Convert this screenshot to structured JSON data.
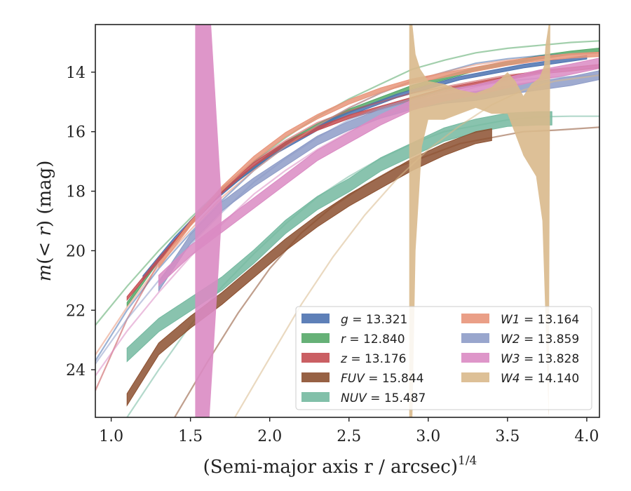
{
  "chart_data": {
    "type": "area",
    "xlabel": "(Semi-major axis r / arcsec)",
    "xlabel_sup": "1/4",
    "ylabel": "m(< r) (mag)",
    "xlim": [
      0.9,
      4.08
    ],
    "ylim": [
      25.6,
      12.4
    ],
    "y_inverted": true,
    "x_ticks": [
      1.0,
      1.5,
      2.0,
      2.5,
      3.0,
      3.5,
      4.0
    ],
    "x_tick_labels": [
      "1.0",
      "1.5",
      "2.0",
      "2.5",
      "3.0",
      "3.5",
      "4.0"
    ],
    "y_ticks": [
      14,
      16,
      18,
      20,
      22,
      24
    ],
    "y_tick_labels": [
      "14",
      "16",
      "18",
      "20",
      "22",
      "24"
    ],
    "grid": false,
    "legend_position": "lower-right",
    "legend": [
      {
        "name": "g",
        "value": "13.321",
        "label": "g = 13.321",
        "color": "#4c72b0"
      },
      {
        "name": "r",
        "value": "12.840",
        "label": "r = 12.840",
        "color": "#55a868"
      },
      {
        "name": "z",
        "value": "13.176",
        "label": "z = 13.176",
        "color": "#c44e52"
      },
      {
        "name": "FUV",
        "value": "15.844",
        "label": "FUV = 15.844",
        "color": "#8c5030"
      },
      {
        "name": "NUV",
        "value": "15.487",
        "label": "NUV = 15.487",
        "color": "#74b9a0"
      },
      {
        "name": "W1",
        "value": "13.164",
        "label": "W1 = 13.164",
        "color": "#e8957a"
      },
      {
        "name": "W2",
        "value": "13.859",
        "label": "W2 = 13.859",
        "color": "#8e9cc8"
      },
      {
        "name": "W3",
        "value": "13.828",
        "label": "W3 = 13.828",
        "color": "#da8bc3"
      },
      {
        "name": "W4",
        "value": "14.140",
        "label": "W4 = 14.140",
        "color": "#d9b98c"
      }
    ],
    "series": [
      {
        "key": "r",
        "color": "#55a868",
        "band": {
          "x": [
            1.1,
            1.3,
            1.5,
            1.7,
            1.9,
            2.1,
            2.3,
            2.5,
            2.7,
            2.9,
            3.1,
            3.3,
            3.5,
            3.7,
            3.9,
            4.08
          ],
          "y": [
            21.8,
            20.3,
            19.1,
            18.0,
            17.2,
            16.4,
            15.8,
            15.3,
            14.9,
            14.5,
            14.2,
            13.9,
            13.7,
            13.5,
            13.35,
            13.25
          ],
          "width": 0.12
        },
        "model": {
          "x": [
            0.9,
            1.1,
            1.3,
            1.5,
            1.7,
            1.9,
            2.1,
            2.3,
            2.5,
            2.7,
            2.9,
            3.1,
            3.3,
            3.5,
            3.7,
            3.9,
            4.08
          ],
          "y": [
            22.5,
            21.2,
            20.0,
            18.9,
            17.9,
            17.0,
            16.2,
            15.5,
            14.9,
            14.4,
            13.9,
            13.6,
            13.35,
            13.2,
            13.1,
            13.0,
            12.95
          ]
        }
      },
      {
        "key": "g",
        "color": "#4c72b0",
        "band": {
          "x": [
            1.2,
            1.4,
            1.6,
            1.8,
            2.0,
            2.2,
            2.4,
            2.6,
            2.8,
            3.0,
            3.2,
            3.4,
            3.6,
            3.8,
            4.0
          ],
          "y": [
            20.9,
            19.6,
            18.5,
            17.6,
            16.8,
            16.2,
            15.6,
            15.2,
            14.8,
            14.5,
            14.2,
            14.0,
            13.8,
            13.65,
            13.5
          ],
          "width": 0.12
        },
        "model": {
          "x": [
            0.9,
            1.1,
            1.3,
            1.5,
            1.7,
            1.9,
            2.1,
            2.3,
            2.5,
            2.7,
            2.9,
            3.1,
            3.3,
            3.5,
            3.7,
            3.9,
            4.08
          ],
          "y": [
            23.7,
            22.0,
            20.6,
            19.4,
            18.3,
            17.3,
            16.5,
            15.8,
            15.2,
            14.7,
            14.3,
            14.0,
            13.7,
            13.55,
            13.45,
            13.4,
            13.35
          ]
        }
      },
      {
        "key": "z",
        "color": "#c44e52",
        "band": {
          "x": [
            1.1,
            1.3,
            1.5,
            1.7,
            1.9,
            2.1,
            2.3,
            2.5,
            2.7,
            2.9,
            3.1,
            3.3,
            3.5,
            3.7,
            3.9,
            4.08
          ],
          "y": [
            21.6,
            20.3,
            19.1,
            18.0,
            17.1,
            16.4,
            15.9,
            15.5,
            15.2,
            14.9,
            14.6,
            14.4,
            14.2,
            14.0,
            13.9,
            13.8
          ],
          "width": 0.12
        },
        "model": {
          "x": [
            0.9,
            1.1,
            1.3,
            1.5,
            1.7,
            1.9,
            2.1,
            2.3,
            2.5,
            2.7,
            2.9,
            3.1,
            3.3,
            3.5,
            3.7,
            3.9,
            4.08
          ],
          "y": [
            24.7,
            22.3,
            20.4,
            19.0,
            17.9,
            17.0,
            16.3,
            15.7,
            15.3,
            15.0,
            14.7,
            14.5,
            14.3,
            14.1,
            14.0,
            13.9,
            13.8
          ]
        }
      },
      {
        "key": "W1",
        "color": "#e8957a",
        "band": {
          "x": [
            1.3,
            1.5,
            1.7,
            1.9,
            2.1,
            2.3,
            2.5,
            2.7,
            2.9,
            3.1,
            3.3,
            3.5,
            3.7,
            3.9,
            4.08
          ],
          "y": [
            20.5,
            19.1,
            17.9,
            16.9,
            16.1,
            15.5,
            15.0,
            14.6,
            14.3,
            14.1,
            13.9,
            13.7,
            13.55,
            13.45,
            13.4
          ],
          "width": 0.15
        },
        "model": {
          "x": [
            0.9,
            1.1,
            1.3,
            1.5,
            1.7,
            1.9,
            2.1,
            2.3,
            2.5,
            2.7,
            2.9,
            3.1,
            3.3,
            3.5,
            3.7,
            3.9,
            4.08
          ],
          "y": [
            23.5,
            21.9,
            20.5,
            19.3,
            18.2,
            17.3,
            16.5,
            15.8,
            15.2,
            14.7,
            14.3,
            14.0,
            13.75,
            13.6,
            13.5,
            13.4,
            13.35
          ]
        }
      },
      {
        "key": "W2",
        "color": "#8e9cc8",
        "band": {
          "x": [
            1.3,
            1.5,
            1.7,
            1.9,
            2.1,
            2.3,
            2.5,
            2.7,
            2.9,
            3.1,
            3.3,
            3.5,
            3.7,
            3.9,
            4.08
          ],
          "y": [
            21.2,
            19.6,
            18.5,
            17.7,
            17.0,
            16.3,
            15.8,
            15.4,
            15.1,
            14.9,
            14.8,
            14.6,
            14.45,
            14.3,
            14.1
          ],
          "width": 0.3
        },
        "model": {
          "x": [
            0.9,
            1.1,
            1.3,
            1.5,
            1.7,
            1.9,
            2.1,
            2.3,
            2.5,
            2.7,
            2.9,
            3.1,
            3.3,
            3.5,
            3.7,
            3.9,
            4.08
          ],
          "y": [
            23.8,
            22.3,
            21.0,
            19.8,
            18.7,
            17.7,
            16.9,
            16.2,
            15.6,
            15.2,
            14.9,
            14.6,
            14.45,
            14.3,
            14.2,
            14.15,
            14.1
          ]
        }
      },
      {
        "key": "NUV",
        "color": "#74b9a0",
        "band": {
          "x": [
            1.1,
            1.3,
            1.5,
            1.7,
            1.9,
            2.1,
            2.3,
            2.5,
            2.7,
            2.9,
            3.1,
            3.3,
            3.5,
            3.7,
            3.78
          ],
          "y": [
            23.5,
            22.5,
            21.8,
            21.1,
            20.2,
            19.2,
            18.4,
            17.8,
            17.1,
            16.6,
            16.1,
            15.8,
            15.6,
            15.55,
            15.55
          ],
          "width": 0.45
        },
        "model": {
          "x": [
            1.1,
            1.3,
            1.5,
            1.7,
            1.9,
            2.1,
            2.3,
            2.5,
            2.7,
            2.9,
            3.1,
            3.3,
            3.5,
            3.7,
            3.9,
            4.08
          ],
          "y": [
            25.6,
            24.0,
            22.5,
            21.2,
            20.1,
            19.1,
            18.2,
            17.5,
            16.9,
            16.4,
            16.0,
            15.8,
            15.6,
            15.5,
            15.48,
            15.48
          ]
        }
      },
      {
        "key": "FUV",
        "color": "#8c5030",
        "band": {
          "x": [
            1.1,
            1.3,
            1.5,
            1.7,
            1.9,
            2.1,
            2.3,
            2.5,
            2.7,
            2.9,
            3.1,
            3.3,
            3.4
          ],
          "y": [
            25.0,
            23.3,
            22.4,
            21.6,
            20.7,
            19.8,
            19.0,
            18.3,
            17.7,
            17.1,
            16.6,
            16.2,
            16.1
          ],
          "width": 0.4
        },
        "model": {
          "x": [
            1.4,
            1.6,
            1.8,
            2.0,
            2.2,
            2.4,
            2.6,
            2.8,
            3.0,
            3.2,
            3.4,
            3.6,
            3.8,
            4.08
          ],
          "y": [
            25.6,
            23.8,
            22.1,
            20.6,
            19.4,
            18.5,
            17.8,
            17.2,
            16.8,
            16.4,
            16.2,
            16.0,
            15.95,
            15.85
          ]
        }
      },
      {
        "key": "W3",
        "color": "#da8bc3",
        "band": {
          "x": [
            1.3,
            1.5,
            1.7,
            1.9,
            2.1,
            2.3,
            2.5,
            2.7,
            2.9,
            3.1,
            3.3,
            3.5,
            3.7,
            3.9,
            4.08
          ],
          "y": [
            21.0,
            20.0,
            19.2,
            18.4,
            17.6,
            16.8,
            16.2,
            15.6,
            15.1,
            14.8,
            14.6,
            14.35,
            14.1,
            13.9,
            13.7
          ],
          "width": 0.35
        },
        "model": {
          "x": [
            0.9,
            1.1,
            1.3,
            1.5,
            1.7,
            1.9,
            2.1,
            2.3,
            2.5,
            2.7,
            2.9,
            3.1,
            3.3,
            3.5,
            3.7,
            3.9,
            4.08
          ],
          "y": [
            24.2,
            22.7,
            21.4,
            20.2,
            19.1,
            18.1,
            17.3,
            16.6,
            16.0,
            15.5,
            15.1,
            14.8,
            14.5,
            14.25,
            14.05,
            13.9,
            13.8
          ]
        },
        "spike": {
          "x": [
            1.53,
            1.53,
            1.62,
            1.68,
            1.7,
            1.63,
            1.53
          ],
          "y": [
            12.4,
            25.6,
            25.6,
            20.4,
            18.6,
            12.4,
            12.4
          ]
        }
      },
      {
        "key": "W4",
        "color": "#d9b98c",
        "model": {
          "x": [
            1.78,
            2.0,
            2.2,
            2.4,
            2.6,
            2.8,
            3.0,
            3.2,
            3.4,
            3.6,
            3.8,
            4.08
          ],
          "y": [
            25.6,
            23.6,
            21.8,
            20.2,
            18.8,
            17.6,
            16.6,
            15.8,
            15.1,
            14.6,
            14.3,
            14.1
          ]
        },
        "spike": {
          "x": [
            2.88,
            2.9,
            2.92,
            2.96,
            3.0,
            3.1,
            3.2,
            3.3,
            3.4,
            3.5,
            3.6,
            3.68,
            3.72,
            3.76,
            3.77,
            3.76,
            3.74,
            3.73,
            3.7,
            3.65,
            3.6,
            3.55,
            3.5,
            3.4,
            3.3,
            3.2,
            3.1,
            3.0,
            2.95,
            2.92,
            2.9,
            2.88
          ],
          "y": [
            25.6,
            25.6,
            20.0,
            16.5,
            15.6,
            15.6,
            15.4,
            15.2,
            15.4,
            15.4,
            16.8,
            17.5,
            19.0,
            25.6,
            12.4,
            12.4,
            13.1,
            13.8,
            14.2,
            14.4,
            14.8,
            14.3,
            14.0,
            14.5,
            14.7,
            14.6,
            14.4,
            14.3,
            13.9,
            13.4,
            12.4,
            12.4
          ]
        }
      }
    ]
  }
}
